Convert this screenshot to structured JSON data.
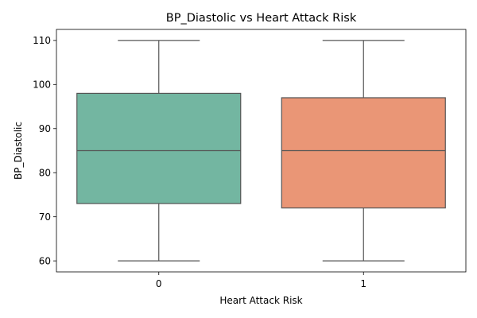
{
  "chart_data": {
    "type": "box",
    "title": "BP_Diastolic vs Heart Attack Risk",
    "xlabel": "Heart Attack Risk",
    "ylabel": "BP_Diastolic",
    "categories": [
      "0",
      "1"
    ],
    "boxes": [
      {
        "category": "0",
        "whisker_low": 60,
        "q1": 73,
        "median": 85,
        "q3": 98,
        "whisker_high": 110,
        "color": "#73b6a1"
      },
      {
        "category": "1",
        "whisker_low": 60,
        "q1": 72,
        "median": 85,
        "q3": 97,
        "whisker_high": 110,
        "color": "#ea9676"
      }
    ],
    "ylim": [
      57.5,
      112.5
    ],
    "yticks": [
      60,
      70,
      80,
      90,
      100,
      110
    ],
    "grid": false,
    "legend": "none",
    "line_color": "#555555"
  }
}
